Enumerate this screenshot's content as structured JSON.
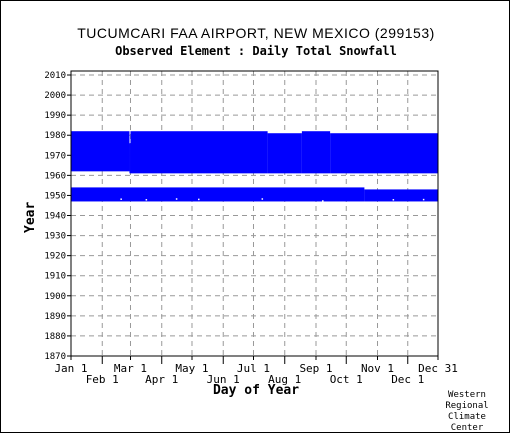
{
  "chart_data": {
    "type": "bar",
    "title": "TUCUMCARI FAA AIRPORT, NEW MEXICO   (299153)",
    "subtitle": "Observed Element : Daily Total Snowfall",
    "xlabel": "Day of Year",
    "ylabel": "Year",
    "xlim": [
      1,
      365
    ],
    "ylim": [
      1870,
      2012
    ],
    "y_ticks": [
      1870,
      1880,
      1890,
      1900,
      1910,
      1920,
      1930,
      1940,
      1950,
      1960,
      1970,
      1980,
      1990,
      2000,
      2010
    ],
    "x_ticks_upper": [
      {
        "label": "Jan 1",
        "day": 1
      },
      {
        "label": "Mar 1",
        "day": 60
      },
      {
        "label": "May 1",
        "day": 121
      },
      {
        "label": "Jul 1",
        "day": 182
      },
      {
        "label": "Sep 1",
        "day": 244
      },
      {
        "label": "Nov 1",
        "day": 305
      },
      {
        "label": "Dec 31",
        "day": 365
      }
    ],
    "x_ticks_lower": [
      {
        "label": "Feb 1",
        "day": 32
      },
      {
        "label": "Apr 1",
        "day": 91
      },
      {
        "label": "Jun 1",
        "day": 152
      },
      {
        "label": "Aug 1",
        "day": 213
      },
      {
        "label": "Oct 1",
        "day": 274
      },
      {
        "label": "Dec 1",
        "day": 335
      }
    ],
    "grid": true,
    "series_color": "#0000ff",
    "records": [
      {
        "start_day": 1,
        "end_day": 59,
        "start_year": 1962,
        "end_year": 1982
      },
      {
        "start_day": 59,
        "end_day": 60,
        "start_year": 1961,
        "end_year": 1976
      },
      {
        "start_day": 60,
        "end_day": 196,
        "start_year": 1961,
        "end_year": 1982
      },
      {
        "start_day": 196,
        "end_day": 230,
        "start_year": 1961,
        "end_year": 1981
      },
      {
        "start_day": 230,
        "end_day": 258,
        "start_year": 1961,
        "end_year": 1982
      },
      {
        "start_day": 258,
        "end_day": 365,
        "start_year": 1961,
        "end_year": 1981
      },
      {
        "start_day": 1,
        "end_day": 292,
        "start_year": 1947,
        "end_year": 1954
      },
      {
        "start_day": 292,
        "end_day": 365,
        "start_year": 1947,
        "end_year": 1953
      }
    ]
  },
  "credit": {
    "line1": "Western",
    "line2": "Regional",
    "line3": "Climate",
    "line4": "Center"
  }
}
